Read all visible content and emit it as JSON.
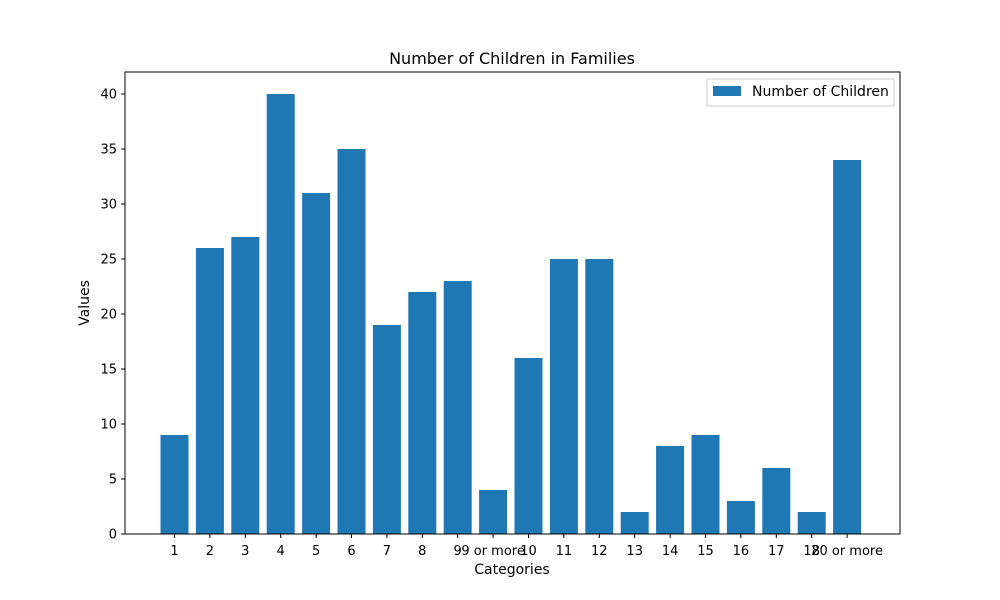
{
  "chart_data": {
    "type": "bar",
    "title": "Number of Children in Families",
    "xlabel": "Categories",
    "ylabel": "Values",
    "categories": [
      "1",
      "2",
      "3",
      "4",
      "5",
      "6",
      "7",
      "8",
      "9",
      "9 or more",
      "10",
      "11",
      "12",
      "13",
      "14",
      "15",
      "16",
      "17",
      "18",
      "20 or more"
    ],
    "series": [
      {
        "name": "Number of Children",
        "values": [
          9,
          26,
          27,
          40,
          31,
          35,
          19,
          22,
          23,
          4,
          16,
          25,
          25,
          2,
          8,
          9,
          3,
          6,
          2,
          34
        ]
      }
    ],
    "ylim": [
      0,
      42
    ],
    "yticks": [
      0,
      5,
      10,
      15,
      20,
      25,
      30,
      35,
      40
    ],
    "legend_position": "top-right",
    "grid": false,
    "colors": {
      "bar": "#1f77b4",
      "axis": "#000000",
      "background": "#ffffff"
    }
  }
}
